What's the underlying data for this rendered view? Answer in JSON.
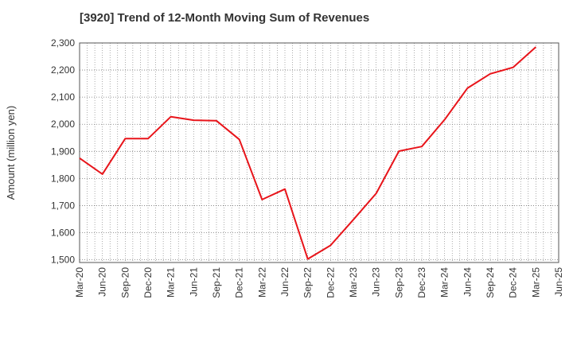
{
  "chart_data": {
    "type": "line",
    "title": "[3920]  Trend of 12-Month Moving Sum of Revenues",
    "xlabel": "",
    "ylabel": "Amount (million yen)",
    "ylim": [
      1490,
      2300
    ],
    "yticks": [
      1500,
      1600,
      1700,
      1800,
      1900,
      2000,
      2100,
      2200,
      2300
    ],
    "ytick_labels": [
      "1,500",
      "1,600",
      "1,700",
      "1,800",
      "1,900",
      "2,000",
      "2,100",
      "2,200",
      "2,300"
    ],
    "xtick_labels": [
      "Mar-20",
      "Jun-20",
      "Sep-20",
      "Dec-20",
      "Mar-21",
      "Jun-21",
      "Sep-21",
      "Dec-21",
      "Mar-22",
      "Jun-22",
      "Sep-22",
      "Dec-22",
      "Mar-23",
      "Jun-23",
      "Sep-23",
      "Dec-23",
      "Mar-24",
      "Jun-24",
      "Sep-24",
      "Dec-24",
      "Mar-25",
      "Jun-25"
    ],
    "grid": true,
    "line_color": "#e8141a",
    "series": [
      {
        "x": [
          "Mar-20",
          "Jun-20",
          "Sep-20",
          "Dec-20",
          "Mar-21",
          "Jun-21",
          "Sep-21",
          "Dec-21",
          "Mar-22",
          "Jun-22",
          "Sep-22",
          "Dec-22",
          "Mar-23",
          "Jun-23",
          "Sep-23",
          "Dec-23",
          "Mar-24",
          "Jun-24",
          "Sep-24",
          "Dec-24",
          "Mar-25"
        ],
        "values": [
          1875,
          1816,
          1947,
          1947,
          2028,
          2015,
          2013,
          1944,
          1722,
          1761,
          1503,
          1553,
          1648,
          1745,
          1901,
          1918,
          2017,
          2133,
          2186,
          2210,
          2285
        ]
      }
    ]
  }
}
